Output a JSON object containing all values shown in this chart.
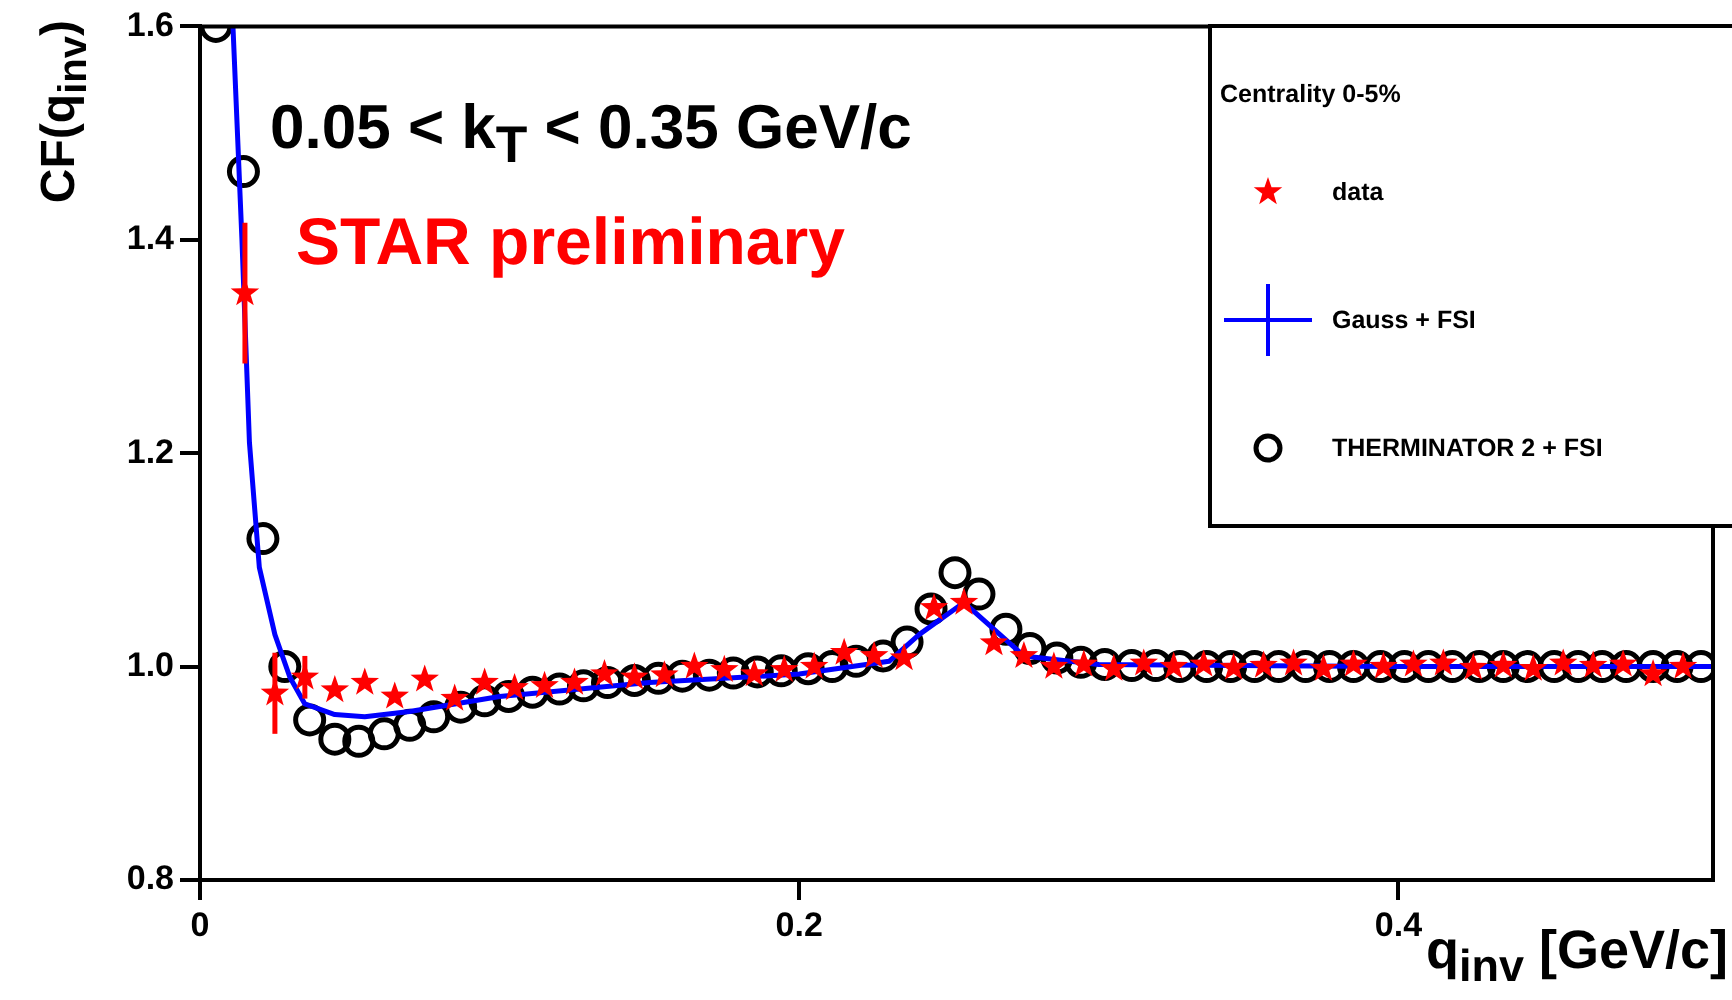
{
  "chart_data": {
    "type": "scatter",
    "annotations": [
      "0.05 < k$_{T}$ < 0.35 GeV/c",
      "STAR preliminary"
    ],
    "xlabel": "q$_{inv}$ [GeV/c]",
    "ylabel": "CF(q$_{inv}$)",
    "legend_title": "Centrality 0-5%",
    "xlim": [
      0,
      0.505
    ],
    "ylim": [
      0.8,
      1.6
    ],
    "xticks": [
      0,
      0.2,
      0.4
    ],
    "yticks": [
      0.8,
      {
        "value": 1.0,
        "label": "1.0"
      },
      1.2,
      1.4,
      1.6
    ],
    "grid": false,
    "legend": "top right",
    "series": [
      {
        "name": "data",
        "marker": "star",
        "color": "#ff0000",
        "x": [
          0.015,
          0.025,
          0.035,
          0.045,
          0.055,
          0.065,
          0.075,
          0.085,
          0.095,
          0.105,
          0.115,
          0.125,
          0.135,
          0.145,
          0.155,
          0.165,
          0.175,
          0.185,
          0.195,
          0.205,
          0.215,
          0.225,
          0.235,
          0.245,
          0.255,
          0.265,
          0.275,
          0.285,
          0.295,
          0.305,
          0.315,
          0.325,
          0.335,
          0.345,
          0.355,
          0.365,
          0.375,
          0.385,
          0.395,
          0.405,
          0.415,
          0.425,
          0.435,
          0.445,
          0.455,
          0.465,
          0.475,
          0.485,
          0.495
        ],
        "values": [
          1.35,
          0.975,
          0.99,
          0.978,
          0.985,
          0.972,
          0.988,
          0.97,
          0.985,
          0.98,
          0.982,
          0.985,
          0.993,
          0.99,
          0.992,
          1.0,
          0.997,
          0.993,
          0.997,
          1.0,
          1.013,
          1.01,
          1.008,
          1.055,
          1.06,
          1.022,
          1.01,
          1.0,
          1.002,
          0.998,
          1.003,
          1.0,
          1.002,
          0.999,
          1.001,
          1.003,
          0.998,
          1.002,
          1.0,
          1.002,
          1.003,
          0.999,
          1.001,
          0.998,
          1.003,
          1.001,
          1.002,
          0.993,
          1.0
        ],
        "errors": [
          0.066,
          0.038,
          0.02,
          null,
          null,
          null,
          null,
          null,
          null,
          null,
          null,
          null,
          null,
          null,
          null,
          null,
          null,
          null,
          null,
          null,
          null,
          null,
          null,
          null,
          null,
          null,
          null,
          null,
          null,
          null,
          null,
          null,
          null,
          null,
          null,
          null,
          null,
          null,
          null,
          null,
          null,
          null,
          null,
          null,
          null,
          null,
          null,
          null,
          null
        ]
      },
      {
        "name": "Gauss + FSI",
        "type": "line",
        "marker": "none",
        "color": "#0000ff",
        "x": [
          0.011,
          0.014,
          0.0165,
          0.0198,
          0.025,
          0.03,
          0.035,
          0.045,
          0.055,
          0.07,
          0.1,
          0.15,
          0.2,
          0.23,
          0.24,
          0.255,
          0.275,
          0.3,
          0.4,
          0.505
        ],
        "values": [
          1.6,
          1.4,
          1.21,
          1.093,
          1.03,
          0.99,
          0.965,
          0.955,
          0.953,
          0.958,
          0.972,
          0.985,
          0.993,
          1.005,
          1.03,
          1.06,
          1.01,
          1.002,
          1.0,
          1.0
        ]
      },
      {
        "name": "THERMINATOR 2 + FSI",
        "marker": "circle",
        "color": "#000000",
        "x": [
          0.0053,
          0.0145,
          0.021,
          0.0283,
          0.0366,
          0.045,
          0.053,
          0.0615,
          0.07,
          0.078,
          0.087,
          0.095,
          0.103,
          0.111,
          0.12,
          0.128,
          0.136,
          0.145,
          0.153,
          0.161,
          0.17,
          0.178,
          0.186,
          0.194,
          0.203,
          0.211,
          0.219,
          0.228,
          0.236,
          0.244,
          0.252,
          0.26,
          0.269,
          0.277,
          0.286,
          0.294,
          0.302,
          0.311,
          0.319,
          0.327,
          0.336,
          0.344,
          0.352,
          0.36,
          0.369,
          0.377,
          0.385,
          0.394,
          0.402,
          0.41,
          0.418,
          0.427,
          0.435,
          0.443,
          0.452,
          0.46,
          0.468,
          0.476,
          0.485,
          0.493,
          0.501
        ],
        "values": [
          1.6,
          1.464,
          1.12,
          1.0,
          0.95,
          0.932,
          0.93,
          0.937,
          0.945,
          0.953,
          0.962,
          0.968,
          0.972,
          0.976,
          0.979,
          0.982,
          0.985,
          0.987,
          0.989,
          0.991,
          0.992,
          0.994,
          0.995,
          0.996,
          0.998,
          1.0,
          1.005,
          1.01,
          1.023,
          1.054,
          1.088,
          1.068,
          1.035,
          1.017,
          1.008,
          1.004,
          1.002,
          1.001,
          1.001,
          1.0,
          1.0,
          1.0,
          1.0,
          1.0,
          1.0,
          1.0,
          1.0,
          1.0,
          1.0,
          1.0,
          1.0,
          1.0,
          1.0,
          1.0,
          1.0,
          1.0,
          1.0,
          1.0,
          1.0,
          1.0,
          1.0
        ]
      }
    ]
  }
}
